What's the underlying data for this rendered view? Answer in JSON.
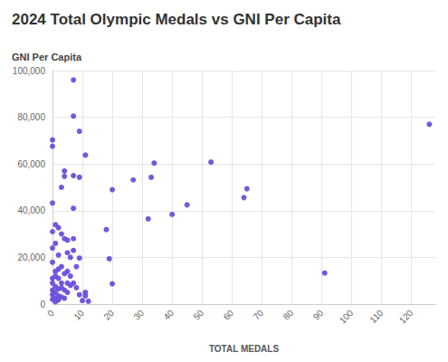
{
  "chart_data": {
    "type": "scatter",
    "title": "2024 Total Olympic Medals vs GNI Per Capita",
    "y_label": "GNI Per Capita",
    "x_label": "TOTAL MEDALS",
    "color": "#6a4fdc",
    "marker": "circle",
    "grid": true,
    "x": [
      126,
      91,
      65,
      64,
      53,
      45,
      40,
      34,
      33,
      32,
      27,
      20,
      20,
      19,
      18,
      7,
      7,
      9,
      0,
      0,
      11,
      4,
      4,
      7,
      9,
      3,
      0,
      7,
      1,
      2,
      0,
      3,
      4,
      5,
      7,
      6,
      9,
      3,
      8,
      0,
      7,
      5,
      2,
      12,
      11,
      11,
      10,
      8,
      7,
      6,
      5,
      4,
      1,
      1,
      2,
      0,
      3,
      0,
      1,
      2,
      4,
      5,
      6,
      1,
      0,
      2,
      3,
      1,
      0,
      2,
      4,
      1,
      0,
      3,
      5,
      9,
      2,
      1,
      0
    ],
    "values": [
      77000,
      13300,
      49400,
      45600,
      60800,
      42500,
      38400,
      60400,
      54300,
      36500,
      53200,
      49000,
      8700,
      19400,
      31900,
      96000,
      80500,
      74000,
      70300,
      67600,
      63800,
      57000,
      54700,
      55000,
      54300,
      50000,
      43300,
      41000,
      34000,
      32700,
      31000,
      30000,
      28000,
      27400,
      28000,
      20000,
      19700,
      16000,
      16000,
      17900,
      23000,
      22000,
      15000,
      1200,
      3500,
      5000,
      1500,
      7000,
      9000,
      12000,
      14000,
      13000,
      14000,
      12000,
      11000,
      11000,
      9000,
      9000,
      7500,
      6500,
      6000,
      5000,
      8000,
      5000,
      4000,
      3500,
      3000,
      2500,
      2000,
      1800,
      2500,
      1000,
      6000,
      7000,
      9000,
      4000,
      21000,
      26000,
      24000
    ],
    "xlim": [
      0,
      128
    ],
    "xticks": [
      0,
      10,
      20,
      30,
      40,
      50,
      60,
      70,
      80,
      90,
      100,
      110,
      120
    ],
    "ylim": [
      0,
      100000
    ],
    "yticks": [
      0,
      {
        "value": 20000,
        "label": "20,000"
      },
      {
        "value": 40000,
        "label": "40,000"
      },
      {
        "value": 60000,
        "label": "60,000"
      },
      {
        "value": 80000,
        "label": "80,000"
      },
      {
        "value": 100000,
        "label": "100,000"
      }
    ]
  }
}
